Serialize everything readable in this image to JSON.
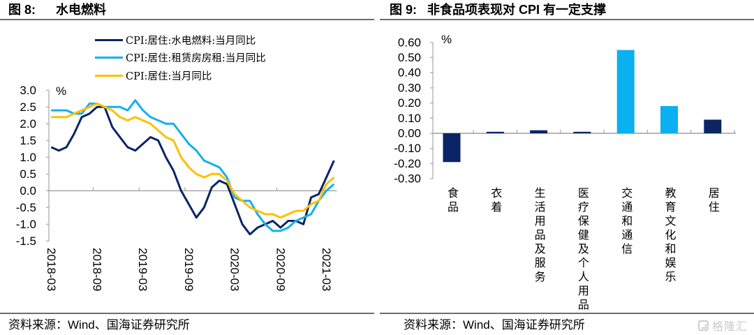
{
  "panels": {
    "left": {
      "fig_label": "图 8:",
      "title": "水电燃料",
      "source": "资料来源：Wind、国海证券研究所"
    },
    "right": {
      "fig_label": "图 9:",
      "title": "非食品项表现对 CPI 有一定支撑",
      "source": "资料来源：Wind、国海证券研究所"
    }
  },
  "watermark": {
    "icon": "glh-logo-icon",
    "text": "格隆汇"
  },
  "chart_data": [
    {
      "type": "line",
      "title": "图 8: 水电燃料",
      "xlabel": "",
      "ylabel": "%",
      "ylim": [
        -1.5,
        3.0
      ],
      "yticks": [
        "3.0",
        "2.5",
        "2.0",
        "1.5",
        "1.0",
        "0.5",
        "0.0",
        "-0.5",
        "-1.0",
        "-1.5"
      ],
      "grid": false,
      "legend_position": "top-center",
      "x": [
        "2018-03",
        "2018-04",
        "2018-05",
        "2018-06",
        "2018-07",
        "2018-08",
        "2018-09",
        "2018-10",
        "2018-11",
        "2018-12",
        "2019-01",
        "2019-02",
        "2019-03",
        "2019-04",
        "2019-05",
        "2019-06",
        "2019-07",
        "2019-08",
        "2019-09",
        "2019-10",
        "2019-11",
        "2019-12",
        "2020-01",
        "2020-02",
        "2020-03",
        "2020-04",
        "2020-05",
        "2020-06",
        "2020-07",
        "2020-08",
        "2020-09",
        "2020-10",
        "2020-11",
        "2020-12",
        "2021-01",
        "2021-02",
        "2021-03",
        "2021-04"
      ],
      "xtick_labels": [
        "2018-03",
        "2018-09",
        "2019-03",
        "2019-09",
        "2020-03",
        "2020-09",
        "2021-03"
      ],
      "series": [
        {
          "name": "CPI:居住:水电燃料:当月同比",
          "color": "#0b2466",
          "values": [
            1.3,
            1.2,
            1.3,
            1.7,
            2.2,
            2.3,
            2.5,
            2.5,
            1.9,
            1.6,
            1.3,
            1.2,
            1.4,
            1.6,
            1.5,
            1.0,
            0.6,
            0.0,
            -0.4,
            -0.8,
            -0.5,
            0.1,
            0.3,
            0.2,
            -0.4,
            -1.0,
            -1.3,
            -1.1,
            -1.0,
            -0.9,
            -1.1,
            -0.9,
            -0.9,
            -1.0,
            -0.2,
            -0.1,
            0.4,
            0.9
          ]
        },
        {
          "name": "CPI:居住:租赁房房租:当月同比",
          "color": "#12b0ee",
          "values": [
            2.4,
            2.4,
            2.4,
            2.3,
            2.3,
            2.6,
            2.6,
            2.5,
            2.5,
            2.5,
            2.4,
            2.7,
            2.4,
            2.2,
            2.1,
            2.0,
            2.0,
            1.7,
            1.4,
            1.2,
            0.9,
            0.8,
            0.7,
            0.4,
            -0.2,
            -0.3,
            -0.3,
            -0.7,
            -1.0,
            -1.2,
            -1.2,
            -1.1,
            -0.9,
            -0.8,
            -0.7,
            -0.3,
            0.0,
            0.2
          ]
        },
        {
          "name": "CPI:居住:当月同比",
          "color": "#ffc000",
          "values": [
            2.2,
            2.2,
            2.2,
            2.3,
            2.4,
            2.5,
            2.6,
            2.5,
            2.4,
            2.2,
            2.1,
            2.2,
            2.1,
            2.0,
            1.8,
            1.6,
            1.5,
            1.0,
            0.7,
            0.5,
            0.4,
            0.5,
            0.5,
            0.3,
            -0.1,
            -0.3,
            -0.5,
            -0.6,
            -0.7,
            -0.7,
            -0.8,
            -0.7,
            -0.6,
            -0.6,
            -0.4,
            -0.3,
            0.2,
            0.4
          ]
        }
      ]
    },
    {
      "type": "bar",
      "title": "图 9: 非食品项表现对 CPI 有一定支撑",
      "xlabel": "",
      "ylabel": "%",
      "ylim": [
        -0.3,
        0.6
      ],
      "yticks": [
        "0.60",
        "0.50",
        "0.40",
        "0.30",
        "0.20",
        "0.10",
        "0.00",
        "-0.10",
        "-0.20",
        "-0.30"
      ],
      "grid": false,
      "categories": [
        "食品",
        "衣着",
        "生活用品及服务",
        "医疗保健及个人用品",
        "交通和通信",
        "教育文化和娱乐",
        "居住"
      ],
      "values": [
        -0.19,
        0.01,
        0.02,
        0.01,
        0.55,
        0.18,
        0.09
      ],
      "colors": [
        "#0b2466",
        "#0b2466",
        "#0b2466",
        "#0b2466",
        "#0ab0ef",
        "#0ab0ef",
        "#0b2466"
      ]
    }
  ]
}
